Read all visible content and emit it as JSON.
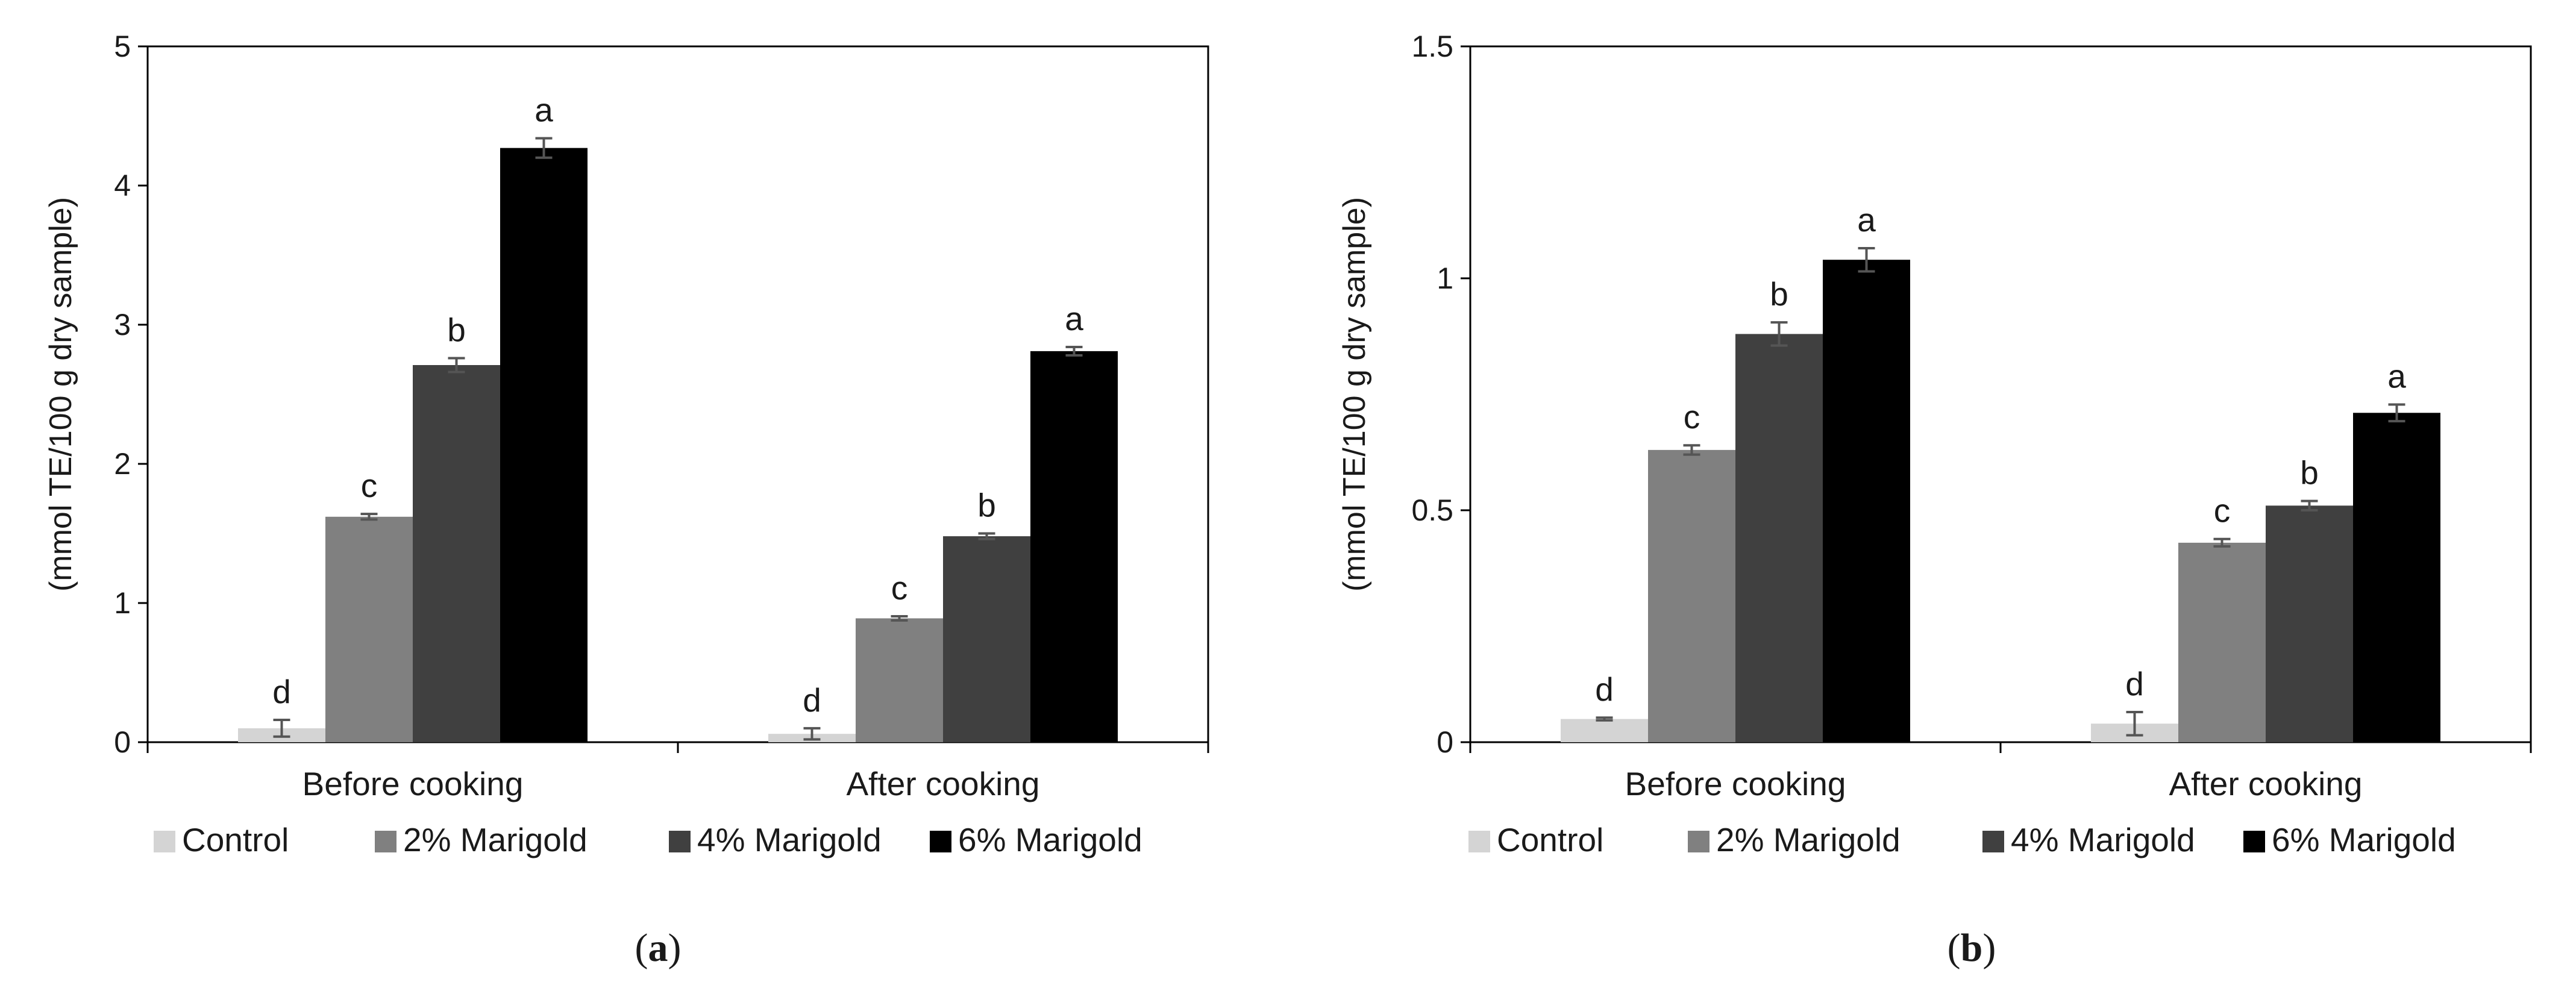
{
  "chart_data": [
    {
      "type": "bar",
      "panel_label": "a",
      "title": "",
      "xlabel": "",
      "ylabel": "(mmol TE/100 g dry sample)",
      "ylim": [
        0,
        5
      ],
      "yticks": [
        0,
        1,
        2,
        3,
        4,
        5
      ],
      "ytick_labels": [
        "0",
        "1",
        "2",
        "3",
        "4",
        "5"
      ],
      "categories": [
        "Before cooking",
        "After cooking"
      ],
      "series": [
        {
          "name": "Control",
          "color": "#d4d4d4",
          "values": [
            0.1,
            0.06
          ],
          "errors": [
            0.06,
            0.04
          ],
          "letters": [
            "d",
            "d"
          ]
        },
        {
          "name": "2% Marigold",
          "color": "#808080",
          "values": [
            1.62,
            0.89
          ],
          "errors": [
            0.02,
            0.015
          ],
          "letters": [
            "c",
            "c"
          ]
        },
        {
          "name": "4% Marigold",
          "color": "#404040",
          "values": [
            2.71,
            1.48
          ],
          "errors": [
            0.05,
            0.02
          ],
          "letters": [
            "b",
            "b"
          ]
        },
        {
          "name": "6% Marigold",
          "color": "#000000",
          "values": [
            4.27,
            2.81
          ],
          "errors": [
            0.07,
            0.03
          ],
          "letters": [
            "a",
            "a"
          ]
        }
      ],
      "legend": "bottom"
    },
    {
      "type": "bar",
      "panel_label": "b",
      "title": "",
      "xlabel": "",
      "ylabel": "(mmol TE/100 g dry sample)",
      "ylim": [
        0,
        1.5
      ],
      "yticks": [
        0,
        0.5,
        1,
        1.5
      ],
      "ytick_labels": [
        "0",
        "0.5",
        "1",
        "1.5"
      ],
      "categories": [
        "Before cooking",
        "After cooking"
      ],
      "series": [
        {
          "name": "Control",
          "color": "#d4d4d4",
          "values": [
            0.05,
            0.04
          ],
          "errors": [
            0.003,
            0.025
          ],
          "letters": [
            "d",
            "d"
          ]
        },
        {
          "name": "2% Marigold",
          "color": "#808080",
          "values": [
            0.63,
            0.43
          ],
          "errors": [
            0.01,
            0.008
          ],
          "letters": [
            "c",
            "c"
          ]
        },
        {
          "name": "4% Marigold",
          "color": "#404040",
          "values": [
            0.88,
            0.51
          ],
          "errors": [
            0.025,
            0.01
          ],
          "letters": [
            "b",
            "b"
          ]
        },
        {
          "name": "6% Marigold",
          "color": "#000000",
          "values": [
            1.04,
            0.71
          ],
          "errors": [
            0.025,
            0.018
          ],
          "letters": [
            "a",
            "a"
          ]
        }
      ],
      "legend": "bottom"
    }
  ]
}
